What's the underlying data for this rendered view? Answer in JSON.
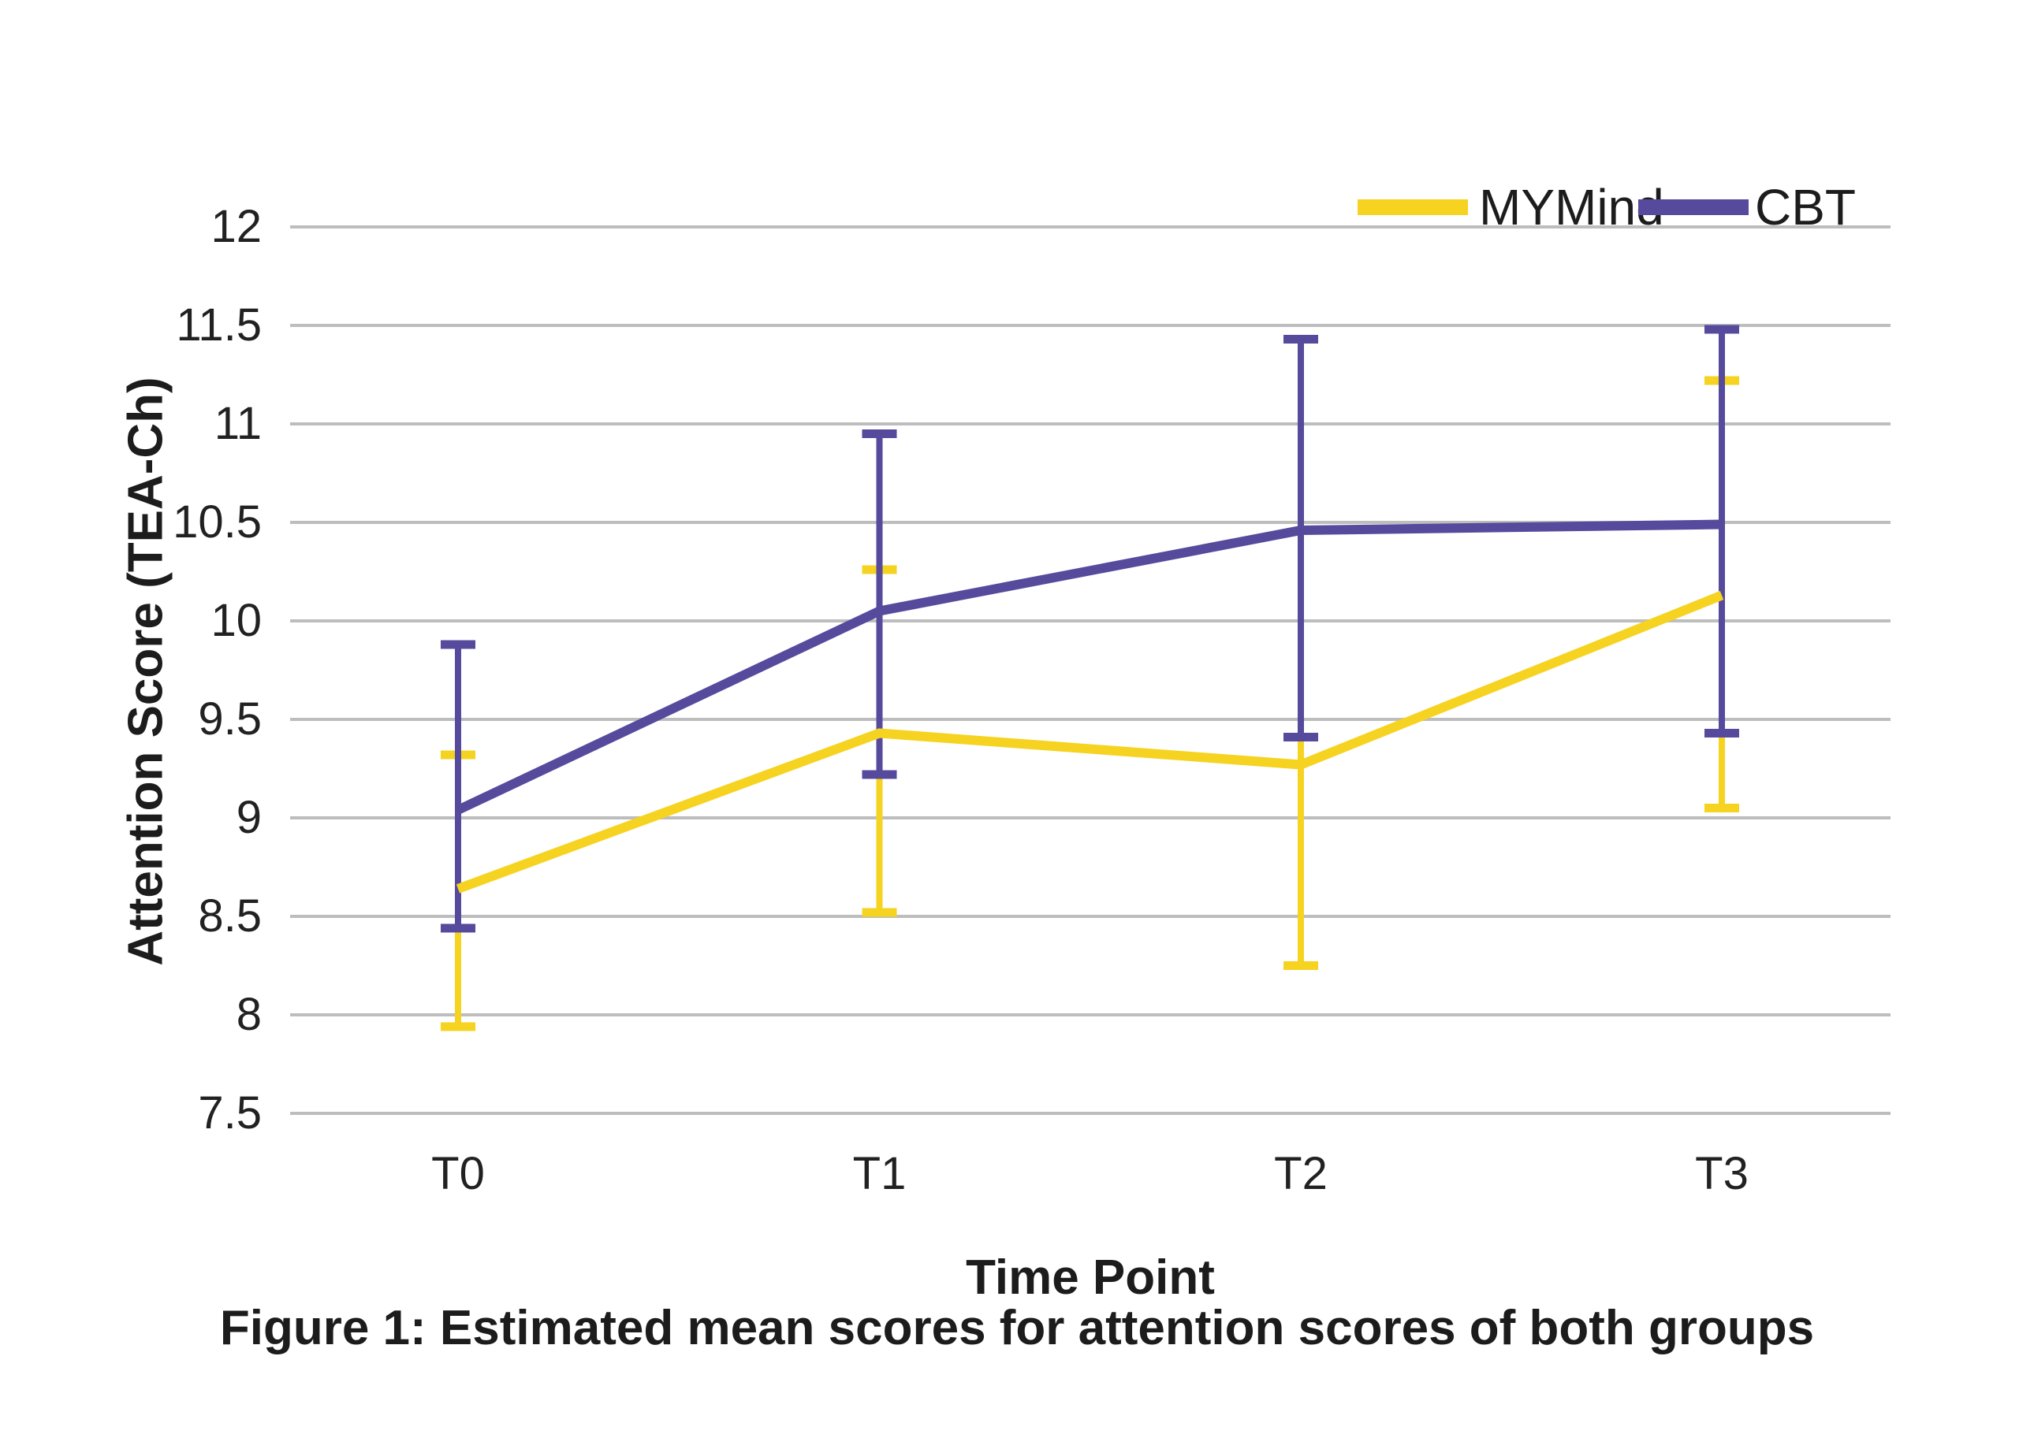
{
  "caption": "Figure 1: Estimated mean scores for attention scores of both groups",
  "chart_data": {
    "type": "line",
    "title": "",
    "xlabel": "Time Point",
    "ylabel": "Attention Score (TEA-Ch)",
    "categories": [
      "T0",
      "T1",
      "T2",
      "T3"
    ],
    "ylim": [
      7.5,
      12
    ],
    "yticks": [
      12,
      11.5,
      11,
      10.5,
      10,
      9.5,
      9,
      8.5,
      8,
      7.5
    ],
    "grid": true,
    "gridline_color": "#BDBDBD",
    "legend_position": "top-right",
    "series": [
      {
        "name": "MYMind",
        "color": "#F5D320",
        "values": [
          8.64,
          9.43,
          9.27,
          10.13
        ],
        "error_upper": [
          9.32,
          10.26,
          9.44,
          11.22
        ],
        "error_upper_cap_visible": [
          true,
          true,
          false,
          true
        ],
        "error_lower": [
          7.94,
          8.52,
          8.25,
          9.05
        ]
      },
      {
        "name": "CBT",
        "color": "#564A9D",
        "values": [
          9.04,
          10.05,
          10.46,
          10.49
        ],
        "error_upper": [
          9.88,
          10.95,
          11.43,
          11.48
        ],
        "error_upper_cap_visible": [
          true,
          true,
          true,
          true
        ],
        "error_lower": [
          8.44,
          9.22,
          9.41,
          9.43
        ]
      }
    ]
  }
}
